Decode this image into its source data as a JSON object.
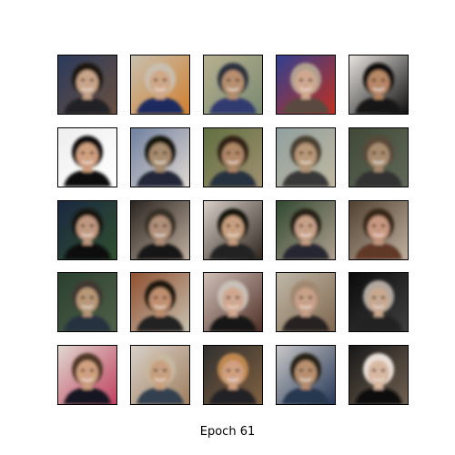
{
  "caption": "Epoch 61",
  "grid": {
    "rows": 5,
    "cols": 5,
    "tiles": [
      {
        "bg": "#2a3a5c",
        "bg2": "#6a5040",
        "hair": "#1a1410",
        "skin": "#c9a58a",
        "shirt": "#202028"
      },
      {
        "bg": "#c8c0b0",
        "bg2": "#d08030",
        "hair": "#c8bfb0",
        "skin": "#d0a888",
        "shirt": "#1a2a60"
      },
      {
        "bg": "#b8b090",
        "bg2": "#7a8a70",
        "hair": "#2a3040",
        "skin": "#b89070",
        "shirt": "#303a70"
      },
      {
        "bg": "#304090",
        "bg2": "#c03020",
        "hair": "#b0a090",
        "skin": "#d0a890",
        "shirt": "#5a4a40"
      },
      {
        "bg": "#e8e4e0",
        "bg2": "#101010",
        "hair": "#100c0a",
        "skin": "#b88868",
        "shirt": "#181818"
      },
      {
        "bg": "#eeeeee",
        "bg2": "#ffffff",
        "hair": "#0c0c0c",
        "skin": "#d0a080",
        "shirt": "#101010"
      },
      {
        "bg": "#7080a0",
        "bg2": "#e0d8d0",
        "hair": "#181410",
        "skin": "#a88c70",
        "shirt": "#202838"
      },
      {
        "bg": "#607040",
        "bg2": "#a09070",
        "hair": "#302418",
        "skin": "#b08868",
        "shirt": "#283040"
      },
      {
        "bg": "#90a0a0",
        "bg2": "#c0b8a0",
        "hair": "#4a4030",
        "skin": "#b89878",
        "shirt": "#383838"
      },
      {
        "bg": "#404838",
        "bg2": "#606858",
        "hair": "#584838",
        "skin": "#a88c70",
        "shirt": "#303030"
      },
      {
        "bg": "#1a2840",
        "bg2": "#305030",
        "hair": "#181410",
        "skin": "#c09880",
        "shirt": "#101010"
      },
      {
        "bg": "#2a2420",
        "bg2": "#c0b0a0",
        "hair": "#383028",
        "skin": "#b09078",
        "shirt": "#181818"
      },
      {
        "bg": "#d8d0c8",
        "bg2": "#302820",
        "hair": "#181410",
        "skin": "#c8a080",
        "shirt": "#202020"
      },
      {
        "bg": "#304830",
        "bg2": "#b0a090",
        "hair": "#282018",
        "skin": "#c8a088",
        "shirt": "#282830"
      },
      {
        "bg": "#504030",
        "bg2": "#c0b0a0",
        "hair": "#382818",
        "skin": "#c89880",
        "shirt": "#603828"
      },
      {
        "bg": "#2a4030",
        "bg2": "#506048",
        "hair": "#403830",
        "skin": "#b89878",
        "shirt": "#283040"
      },
      {
        "bg": "#905030",
        "bg2": "#c8c0b0",
        "hair": "#1a1410",
        "skin": "#c09070",
        "shirt": "#202020"
      },
      {
        "bg": "#d0c0b8",
        "bg2": "#503028",
        "hair": "#c8c0b8",
        "skin": "#d0a890",
        "shirt": "#181818"
      },
      {
        "bg": "#c0b8a8",
        "bg2": "#806850",
        "hair": "#a08870",
        "skin": "#c8a088",
        "shirt": "#282020"
      },
      {
        "bg": "#0a0a0a",
        "bg2": "#404040",
        "hair": "#b0a8a0",
        "skin": "#c8a890",
        "shirt": "#202020"
      },
      {
        "bg": "#e0d8d0",
        "bg2": "#c04060",
        "hair": "#503828",
        "skin": "#d0a080",
        "shirt": "#181820"
      },
      {
        "bg": "#d8d0c8",
        "bg2": "#a08060",
        "hair": "#c8b8a0",
        "skin": "#c8a080",
        "shirt": "#304050"
      },
      {
        "bg": "#303030",
        "bg2": "#806040",
        "hair": "#c08850",
        "skin": "#d0a080",
        "shirt": "#202028"
      },
      {
        "bg": "#c8c8c8",
        "bg2": "#283858",
        "hair": "#282018",
        "skin": "#b89070",
        "shirt": "#283850"
      },
      {
        "bg": "#181818",
        "bg2": "#706050",
        "hair": "#e8e0d8",
        "skin": "#d8b8a0",
        "shirt": "#101010"
      }
    ]
  }
}
